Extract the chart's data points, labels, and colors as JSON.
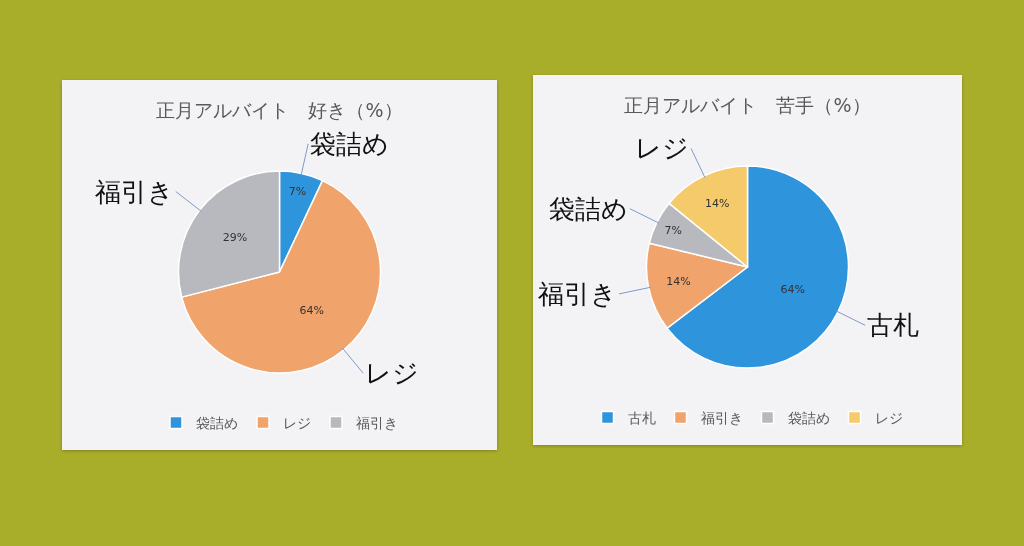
{
  "chart_data": [
    {
      "type": "pie",
      "title": "正月アルバイト　好き（%）",
      "categories": [
        "袋詰め",
        "レジ",
        "福引き"
      ],
      "values": [
        7,
        64,
        29
      ],
      "colors": [
        "#2e94dc",
        "#f0a36a",
        "#b8b9be"
      ],
      "value_labels": [
        "7%",
        "64%",
        "29%"
      ],
      "legend": "bottom"
    },
    {
      "type": "pie",
      "title": "正月アルバイト　苦手（%）",
      "categories": [
        "古札",
        "福引き",
        "袋詰め",
        "レジ"
      ],
      "values": [
        64,
        14,
        7,
        14
      ],
      "colors": [
        "#2e94dc",
        "#f0a36a",
        "#b8b9be",
        "#f5ca6a"
      ],
      "value_labels": [
        "64%",
        "14%",
        "7%",
        "14%"
      ],
      "legend": "bottom"
    }
  ]
}
